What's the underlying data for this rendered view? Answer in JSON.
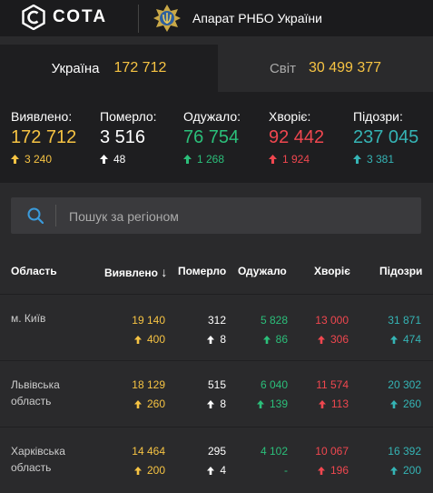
{
  "header": {
    "logo_text": "СОТА",
    "agency": "Апарат РНБО України"
  },
  "tabs": [
    {
      "name": "Україна",
      "value": "172 712"
    },
    {
      "name": "Світ",
      "value": "30 499 377"
    }
  ],
  "stats": [
    {
      "label": "Виявлено:",
      "value": "172 712",
      "delta": "3 240",
      "color": "#f6c343"
    },
    {
      "label": "Померло:",
      "value": "3 516",
      "delta": "48",
      "color": "#ffffff"
    },
    {
      "label": "Одужало:",
      "value": "76 754",
      "delta": "1 268",
      "color": "#2bbf7a"
    },
    {
      "label": "Хворіє:",
      "value": "92 442",
      "delta": "1 924",
      "color": "#f0474f"
    },
    {
      "label": "Підозри:",
      "value": "237 045",
      "delta": "3 381",
      "color": "#35b4b5"
    }
  ],
  "search": {
    "placeholder": "Пошук за регіоном"
  },
  "table": {
    "headers": {
      "region": "Область",
      "confirmed": "Виявлено",
      "sort_arrow": "↓",
      "deaths": "Померло",
      "recovered": "Одужало",
      "sick": "Хворіє",
      "suspected": "Підозри"
    },
    "rows": [
      {
        "region_line1": "м. Київ",
        "region_line2": "",
        "confirmed": "19 140",
        "confirmed_d": "400",
        "deaths": "312",
        "deaths_d": "8",
        "recovered": "5 828",
        "recovered_d": "86",
        "sick": "13 000",
        "sick_d": "306",
        "suspected": "31 871",
        "suspected_d": "474"
      },
      {
        "region_line1": "Львівська",
        "region_line2": "область",
        "confirmed": "18 129",
        "confirmed_d": "260",
        "deaths": "515",
        "deaths_d": "8",
        "recovered": "6 040",
        "recovered_d": "139",
        "sick": "11 574",
        "sick_d": "113",
        "suspected": "20 302",
        "suspected_d": "260"
      },
      {
        "region_line1": "Харківська",
        "region_line2": "область",
        "confirmed": "14 464",
        "confirmed_d": "200",
        "deaths": "295",
        "deaths_d": "4",
        "recovered": "4 102",
        "recovered_d": "-",
        "sick": "10 067",
        "sick_d": "196",
        "suspected": "16 392",
        "suspected_d": "200"
      }
    ]
  },
  "colors": {
    "confirmed": "#f6c343",
    "deaths": "#ffffff",
    "recovered": "#2bbf7a",
    "sick": "#f0474f",
    "suspected": "#35b4b5"
  },
  "icons": {
    "logo": "sota-logo-icon",
    "crest": "rnbo-emblem-icon",
    "search": "search-icon",
    "arrow": "arrow-up-icon"
  }
}
